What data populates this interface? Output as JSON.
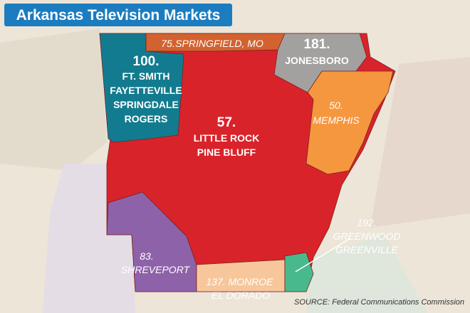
{
  "title": "Arkansas Television Markets",
  "markets": [
    {
      "rank": "100.",
      "names": [
        "FT. SMITH",
        "FAYETTEVILLE",
        "SPRINGDALE",
        "ROGERS"
      ]
    },
    {
      "rank": "75.",
      "names": [
        "SPRINGFIELD, MO"
      ]
    },
    {
      "rank": "181.",
      "names": [
        "JONESBORO"
      ]
    },
    {
      "rank": "57.",
      "names": [
        "LITTLE ROCK",
        "PINE BLUFF"
      ]
    },
    {
      "rank": "50.",
      "names": [
        "MEMPHIS"
      ]
    },
    {
      "rank": "192.",
      "names": [
        "GREENWOOD",
        "GREENVILLE"
      ]
    },
    {
      "rank": "83.",
      "names": [
        "SHREVEPORT"
      ]
    },
    {
      "rank": "137.",
      "names": [
        "MONROE",
        "EL DORADO"
      ]
    }
  ],
  "source": "SOURCE: Federal Communications Commission"
}
